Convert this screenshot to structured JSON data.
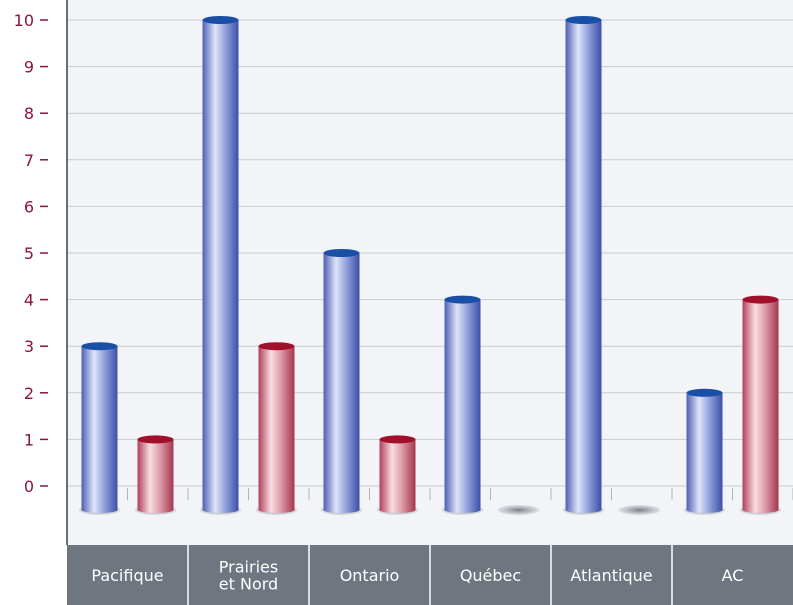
{
  "chart_data": {
    "type": "bar",
    "categories": [
      [
        "Pacifique"
      ],
      [
        "Prairies",
        "et Nord"
      ],
      [
        "Ontario"
      ],
      [
        "Québec"
      ],
      [
        "Atlantique"
      ],
      [
        "AC"
      ]
    ],
    "series": [
      {
        "values": [
          3,
          10,
          5,
          4,
          10,
          2
        ],
        "color": "#5b6fc7"
      },
      {
        "values": [
          1,
          3,
          1,
          0,
          0,
          4
        ],
        "color": "#b8485c"
      }
    ],
    "y_ticks": [
      "0",
      "1",
      "2",
      "3",
      "4",
      "5",
      "6",
      "7",
      "8",
      "9",
      "10"
    ],
    "ylim": [
      0,
      10
    ],
    "grid": true,
    "colors": {
      "plot_background": "#f2f4f8",
      "grid": "#c8ccd2",
      "category_band": "#707680",
      "tick_text": "#8a1538",
      "blue_cap": "#1a4fa8",
      "red_cap": "#a0102a"
    }
  }
}
